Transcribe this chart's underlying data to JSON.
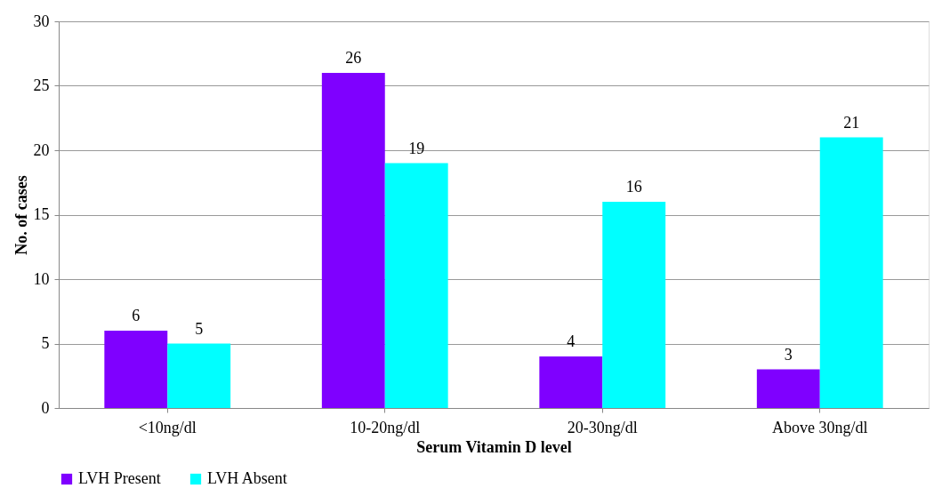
{
  "chart_data": {
    "type": "bar",
    "xlabel": "Serum Vitamin D level",
    "ylabel": "No. of cases",
    "categories": [
      "<10ng/dl",
      "10-20ng/dl",
      "20-30ng/dl",
      "Above 30ng/dl"
    ],
    "series": [
      {
        "name": "LVH Present",
        "color": "#7f00ff",
        "values": [
          6,
          26,
          4,
          3
        ]
      },
      {
        "name": "LVH Absent",
        "color": "#00ffff",
        "values": [
          5,
          19,
          16,
          21
        ]
      }
    ],
    "ylim": [
      0,
      30
    ],
    "yticks": [
      0,
      5,
      10,
      15,
      20,
      25,
      30
    ],
    "grid": "y",
    "legend": "bottom",
    "data_labels": true
  }
}
